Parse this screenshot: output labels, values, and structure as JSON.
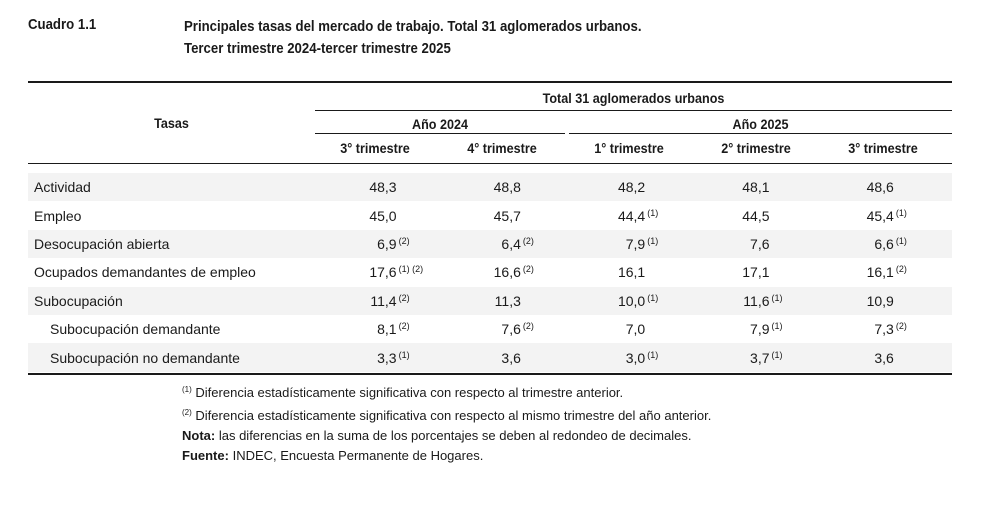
{
  "cuadro": "Cuadro 1.1",
  "title_line1": "Principales tasas del mercado de trabajo. Total 31 aglomerados urbanos.",
  "title_line2": "Tercer trimestre 2024-tercer trimestre 2025",
  "header": {
    "row_label": "Tasas",
    "group": "Total 31 aglomerados urbanos",
    "year_2024": "Año 2024",
    "year_2025": "Año 2025",
    "quarters": [
      "3° trimestre",
      "4° trimestre",
      "1° trimestre",
      "2° trimestre",
      "3° trimestre"
    ]
  },
  "rows": [
    {
      "label": "Actividad",
      "values": [
        "48,3",
        "48,8",
        "48,2",
        "48,1",
        "48,6"
      ],
      "notes": [
        "",
        "",
        "",
        "",
        ""
      ]
    },
    {
      "label": "Empleo",
      "values": [
        "45,0",
        "45,7",
        "44,4",
        "44,5",
        "45,4"
      ],
      "notes": [
        "",
        "",
        "(1)",
        "",
        "(1)"
      ]
    },
    {
      "label": "Desocupación abierta",
      "values": [
        "6,9",
        "6,4",
        "7,9",
        "7,6",
        "6,6"
      ],
      "notes": [
        "(2)",
        "(2)",
        "(1)",
        "",
        "(1)"
      ]
    },
    {
      "label": "Ocupados demandantes de empleo",
      "values": [
        "17,6",
        "16,6",
        "16,1",
        "17,1",
        "16,1"
      ],
      "notes": [
        "(1) (2)",
        "(2)",
        "",
        "",
        "(2)"
      ]
    },
    {
      "label": "Subocupación",
      "values": [
        "11,4",
        "11,3",
        "10,0",
        "11,6",
        "10,9"
      ],
      "notes": [
        "(2)",
        "",
        "(1)",
        "(1)",
        ""
      ]
    },
    {
      "label": "Subocupación demandante",
      "values": [
        "8,1",
        "7,6",
        "7,0",
        "7,9",
        "7,3"
      ],
      "notes": [
        "(2)",
        "(2)",
        "",
        "(1)",
        "(2)"
      ]
    },
    {
      "label": "Subocupación no demandante",
      "values": [
        "3,3",
        "3,6",
        "3,0",
        "3,7",
        "3,6"
      ],
      "notes": [
        "(1)",
        "",
        "(1)",
        "(1)",
        ""
      ]
    }
  ],
  "footnotes": {
    "n1_mark": "(1)",
    "n1_text": "Diferencia estadísticamente significativa con respecto al trimestre anterior.",
    "n2_mark": "(2)",
    "n2_text": "Diferencia estadísticamente significativa con respecto al mismo trimestre del año anterior.",
    "nota_label": "Nota:",
    "nota_text": "las diferencias en la suma de los porcentajes se deben al redondeo de decimales.",
    "fuente_label": "Fuente:",
    "fuente_text": "INDEC, Encuesta Permanente de Hogares."
  }
}
